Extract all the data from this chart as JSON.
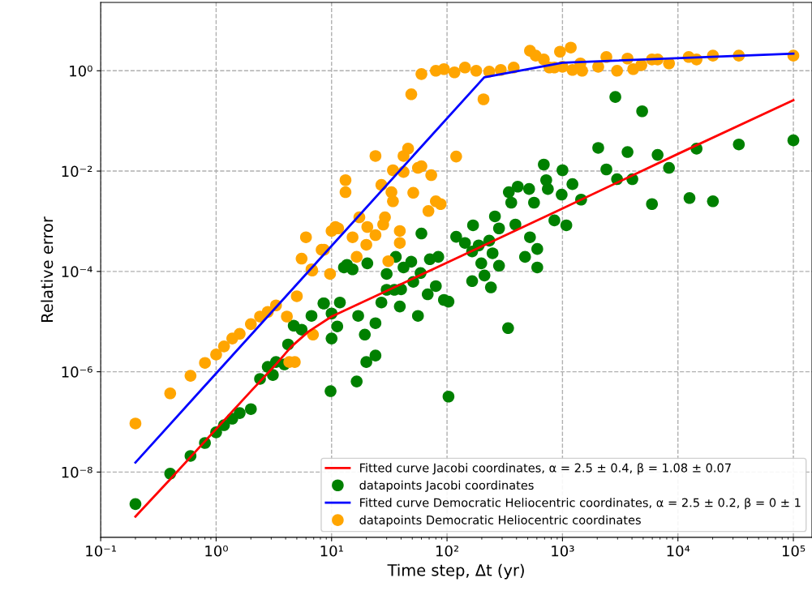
{
  "chart_data": {
    "type": "scatter",
    "xlabel": "Time step, Δt (yr)",
    "ylabel": "Relative error",
    "log": "xy",
    "grid": true,
    "legend": "bottom right",
    "xlim": [
      0.1,
      145000
    ],
    "ylim": [
      5e-10,
      23
    ],
    "xticks": [
      {
        "value": 0.1,
        "label": "10⁻¹"
      },
      {
        "value": 1,
        "label": "10⁰"
      },
      {
        "value": 10,
        "label": "10¹"
      },
      {
        "value": 100,
        "label": "10²"
      },
      {
        "value": 1000,
        "label": "10³"
      },
      {
        "value": 10000,
        "label": "10⁴"
      },
      {
        "value": 100000,
        "label": "10⁵"
      }
    ],
    "yticks": [
      {
        "value": 1e-08,
        "label": "10⁻⁸"
      },
      {
        "value": 1e-06,
        "label": "10⁻⁶"
      },
      {
        "value": 0.0001,
        "label": "10⁻⁴"
      },
      {
        "value": 0.01,
        "label": "10⁻²"
      },
      {
        "value": 1,
        "label": "10⁰"
      }
    ],
    "series": [
      {
        "type": "line",
        "name": "Fitted curve Jacobi coordinates, α = 2.5 ± 0.4, β = 1.08 ± 0.07",
        "color": "#ff0000",
        "x": [
          0.2,
          0.4,
          1,
          2,
          3.2,
          4.5,
          6.3,
          10,
          32,
          100,
          1000,
          10000,
          100000
        ],
        "values": [
          1.3e-09,
          7.2e-09,
          7.2e-08,
          4.1e-07,
          1.3e-06,
          3.2e-06,
          6.3e-06,
          1.26e-05,
          4.4e-05,
          0.00015,
          0.0018,
          0.022,
          0.26
        ]
      },
      {
        "name": "datapoints Jacobi coordinates",
        "color": "#008000",
        "x": [
          0.2,
          0.4,
          0.6,
          0.8,
          1.0,
          1.17,
          1.38,
          1.6,
          2.0,
          2.4,
          2.8,
          3.1,
          3.3,
          3.9,
          4.2,
          4.7,
          5.5,
          6.7,
          8.5,
          10,
          11.2,
          10,
          11.8,
          9.8,
          12.8,
          13.6,
          15.2,
          20.4,
          30,
          36,
          42,
          49,
          60,
          59,
          51,
          71,
          84,
          80,
          68,
          94,
          103,
          120,
          143,
          168,
          165,
          188,
          198,
          165,
          211,
          240,
          232,
          248,
          282,
          260,
          282,
          391,
          343,
          410,
          514,
          360,
          567,
          523,
          605,
          474,
          605,
          851,
          689,
          723,
          747,
          1000,
          984,
          1080,
          338,
          103,
          16.5,
          20,
          24,
          19.4,
          24,
          17,
          27,
          39,
          56,
          30,
          35,
          40,
          8.6,
          2870,
          4900,
          2040,
          3660,
          6670,
          14500,
          33700,
          100000,
          2400,
          8370,
          2970,
          4030,
          1220,
          1450,
          5960,
          12600,
          20100
        ],
        "values": [
          2.3e-09,
          9.3e-09,
          2.1e-08,
          3.8e-08,
          6.2e-08,
          8.6e-08,
          1.16e-07,
          1.5e-07,
          1.8e-07,
          7.2e-07,
          1.25e-06,
          8.6e-07,
          1.56e-06,
          1.4e-06,
          3.5e-06,
          8.3e-06,
          6.9e-06,
          1.3e-05,
          2.3e-05,
          1.45e-05,
          8e-06,
          4.6e-06,
          2.4e-05,
          4.1e-07,
          0.00012,
          0.000135,
          0.00011,
          0.000145,
          8.9e-05,
          0.000195,
          0.00012,
          0.000156,
          0.00057,
          9.3e-05,
          6.2e-05,
          0.000175,
          0.000195,
          5.1e-05,
          3.5e-05,
          2.7e-05,
          2.5e-05,
          0.00049,
          0.00037,
          0.00083,
          0.00025,
          0.00033,
          0.000145,
          6.4e-05,
          8.3e-05,
          4.8e-05,
          0.00041,
          0.00023,
          0.00013,
          0.00125,
          0.00072,
          0.00086,
          0.0038,
          0.0049,
          0.0044,
          0.00235,
          0.00235,
          0.00048,
          0.00028,
          0.000195,
          0.00012,
          0.00104,
          0.0135,
          0.0066,
          0.0044,
          0.0104,
          0.0034,
          0.00083,
          7.4e-06,
          3.2e-07,
          6.4e-07,
          1.56e-06,
          2.1e-06,
          5.5e-06,
          9.3e-06,
          1.3e-05,
          2.4e-05,
          2e-05,
          1.3e-05,
          4.3e-05,
          4.3e-05,
          4.4e-05,
          2.3e-05,
          0.3,
          0.156,
          0.029,
          0.024,
          0.021,
          0.028,
          0.034,
          0.041,
          0.0108,
          0.0116,
          0.0069,
          0.0069,
          0.0055,
          0.0027,
          0.0022,
          0.0029,
          0.0025
        ]
      },
      {
        "type": "line",
        "name": "Fitted curve Democratic Heliocentric coordinates, α = 2.5 ± 0.2, β = 0 ± 1",
        "color": "#0000ff",
        "x": [
          0.2,
          210,
          1000,
          100000
        ],
        "values": [
          1.55e-08,
          0.74,
          1.45,
          2.2
        ]
      },
      {
        "name": "datapoints Democratic Heliocentric coordinates",
        "color": "#ffa500",
        "x": [
          0.2,
          0.4,
          0.6,
          0.8,
          1,
          1.17,
          1.38,
          1.6,
          2.0,
          2.4,
          2.8,
          3.3,
          4.1,
          5.0,
          6.9,
          4.3,
          4.8,
          6.8,
          9.7,
          6.0,
          10,
          10.8,
          8.2,
          5.5,
          6.7,
          13.2,
          13.2,
          11.4,
          8.6,
          17.4,
          15.2,
          20.4,
          24,
          20,
          16.5,
          29,
          28,
          24,
          27,
          33,
          34,
          34,
          42,
          42,
          46,
          56,
          60,
          73,
          51,
          69,
          80,
          88,
          39,
          39,
          31,
          120,
          49,
          60,
          207,
          80,
          94,
          116,
          143,
          179,
          232,
          292,
          378,
          523,
          586,
          689,
          771,
          952,
          1000,
          1180,
          851,
          1220,
          1480,
          1430,
          2040,
          2400,
          2970,
          3660,
          4100,
          4820,
          5960,
          6670,
          8370,
          12400,
          14500,
          20100,
          33700,
          100000
        ],
        "values": [
          9.3e-08,
          3.7e-07,
          8.3e-07,
          1.5e-06,
          2.2e-06,
          3.2e-06,
          4.6e-06,
          5.7e-06,
          8.9e-06,
          1.26e-05,
          1.56e-05,
          2.1e-05,
          1.26e-05,
          3.2e-05,
          5.5e-06,
          1.56e-06,
          1.56e-06,
          0.000104,
          8.9e-05,
          0.00048,
          0.00064,
          0.00077,
          0.00027,
          0.00018,
          0.00011,
          0.0066,
          0.0038,
          0.00072,
          0.00027,
          0.0012,
          0.00048,
          0.00077,
          0.00053,
          0.00034,
          0.000195,
          0.0012,
          0.00086,
          0.02,
          0.0053,
          0.0038,
          0.0025,
          0.0104,
          0.0096,
          0.02,
          0.028,
          0.0116,
          0.0125,
          0.0083,
          0.0037,
          0.0016,
          0.0025,
          0.0022,
          0.00064,
          0.00037,
          0.00016,
          0.0195,
          0.34,
          0.86,
          0.27,
          1.0,
          1.08,
          0.93,
          1.16,
          1.0,
          0.96,
          1.04,
          1.16,
          2.5,
          2.0,
          1.68,
          1.16,
          2.4,
          1.2,
          2.9,
          1.16,
          1.04,
          1.0,
          1.4,
          1.2,
          1.88,
          1.0,
          1.75,
          1.08,
          1.3,
          1.68,
          1.68,
          1.4,
          1.88,
          1.68,
          2.0,
          2.0,
          2.0
        ]
      }
    ]
  }
}
